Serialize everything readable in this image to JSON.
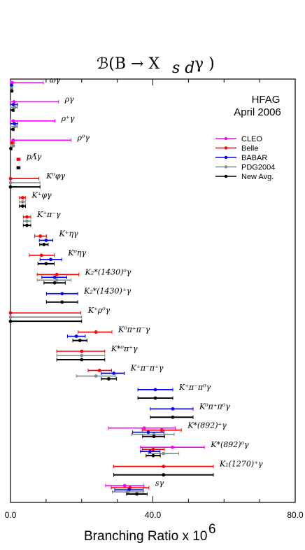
{
  "chart_data": {
    "type": "errorbar",
    "title": "ℬ(B → X_{s d} γ )",
    "title_main": "ℬ(B → X",
    "title_sub": "s d",
    "title_end": "γ )",
    "xlabel": "Branching Ratio x 10",
    "xlabel_exp": "6",
    "xlim": [
      0,
      80
    ],
    "xticks": [
      "0.0",
      "40.0",
      "80.0"
    ],
    "grid": false,
    "legend_position": "top-right",
    "annotation": [
      "HFAG",
      "April 2006"
    ],
    "series": [
      {
        "name": "CLEO",
        "color": "#ff00ff"
      },
      {
        "name": "Belle",
        "color": "#ff0000"
      },
      {
        "name": "BABAR",
        "color": "#0000ff"
      },
      {
        "name": "PDG2004",
        "color": "#7f8c8d"
      },
      {
        "name": "New Avg.",
        "color": "#000000"
      }
    ],
    "categories": [
      {
        "label": "ωγ",
        "points": [
          {
            "series": "CLEO",
            "value": 0.5,
            "lo": 0.0,
            "hi": 9.2
          },
          {
            "series": "BABAR",
            "value": 0.3,
            "lo": 0.0,
            "hi": 0.5
          },
          {
            "series": "PDG2004",
            "value": 0.3,
            "lo": 0.0,
            "hi": 0.5
          },
          {
            "series": "New Avg.",
            "value": 0.4,
            "lo": 0.0,
            "hi": 0.6
          }
        ]
      },
      {
        "label": "ργ",
        "points": [
          {
            "series": "CLEO",
            "value": 1.0,
            "lo": 0.0,
            "hi": 13.5
          },
          {
            "series": "BABAR",
            "value": 0.8,
            "lo": 0.0,
            "hi": 2.0
          },
          {
            "series": "PDG2004",
            "value": 1.2,
            "lo": 0.0,
            "hi": 2.0
          },
          {
            "series": "New Avg.",
            "value": 0.7,
            "lo": 0.0,
            "hi": 1.0
          }
        ]
      },
      {
        "label": "ρ⁺γ",
        "points": [
          {
            "series": "CLEO",
            "value": 0.8,
            "lo": 0.0,
            "hi": 12.5
          },
          {
            "series": "BABAR",
            "value": 1.1,
            "lo": 0.0,
            "hi": 2.0
          },
          {
            "series": "PDG2004",
            "value": 1.3,
            "lo": 0.0,
            "hi": 2.0
          },
          {
            "series": "New Avg.",
            "value": 0.7,
            "lo": 0.0,
            "hi": 1.0
          }
        ]
      },
      {
        "label": "ρ⁰γ",
        "points": [
          {
            "series": "CLEO",
            "value": 0.8,
            "lo": 0.0,
            "hi": 17.0
          },
          {
            "series": "Belle",
            "value": 0.4,
            "lo": 0.0,
            "hi": 1.0
          },
          {
            "series": "PDG2004",
            "value": 0.8,
            "lo": 0.0,
            "hi": 1.0
          },
          {
            "series": "New Avg.",
            "value": 0.1,
            "lo": 0.0,
            "hi": 0.4
          }
        ]
      },
      {
        "label": "pΛ̄γ",
        "points": [
          {
            "series": "Belle",
            "value": 2.2,
            "lo": 1.8,
            "hi": 2.7
          },
          {
            "series": "New Avg.",
            "value": 2.2,
            "lo": 1.8,
            "hi": 2.7
          }
        ]
      },
      {
        "label": "K⁰φγ",
        "points": [
          {
            "series": "Belle",
            "value": 0.0,
            "lo": 0.0,
            "hi": 8.0
          },
          {
            "series": "PDG2004",
            "value": 0.0,
            "lo": 0.0,
            "hi": 8.3
          },
          {
            "series": "New Avg.",
            "value": 0.0,
            "lo": 0.0,
            "hi": 8.3
          }
        ]
      },
      {
        "label": "K⁺φγ",
        "points": [
          {
            "series": "Belle",
            "value": 3.4,
            "lo": 2.5,
            "hi": 4.2
          },
          {
            "series": "PDG2004",
            "value": 3.4,
            "lo": 2.5,
            "hi": 4.2
          },
          {
            "series": "New Avg.",
            "value": 3.4,
            "lo": 2.5,
            "hi": 4.2
          }
        ]
      },
      {
        "label": "K⁺π⁻γ",
        "points": [
          {
            "series": "Belle",
            "value": 4.6,
            "lo": 3.6,
            "hi": 5.7
          },
          {
            "series": "PDG2004",
            "value": 4.6,
            "lo": 3.6,
            "hi": 5.7
          },
          {
            "series": "New Avg.",
            "value": 4.6,
            "lo": 3.6,
            "hi": 5.7
          }
        ]
      },
      {
        "label": "K⁺ηγ",
        "points": [
          {
            "series": "Belle",
            "value": 8.4,
            "lo": 6.8,
            "hi": 10.1
          },
          {
            "series": "BABAR",
            "value": 10.0,
            "lo": 8.1,
            "hi": 11.9
          },
          {
            "series": "New Avg.",
            "value": 9.4,
            "lo": 8.2,
            "hi": 10.6
          }
        ]
      },
      {
        "label": "K⁰ηγ",
        "points": [
          {
            "series": "Belle",
            "value": 8.7,
            "lo": 5.3,
            "hi": 12.3
          },
          {
            "series": "BABAR",
            "value": 11.3,
            "lo": 8.3,
            "hi": 14.4
          },
          {
            "series": "New Avg.",
            "value": 10.0,
            "lo": 7.7,
            "hi": 12.3
          }
        ]
      },
      {
        "label": "K₂*(1430)⁰γ",
        "points": [
          {
            "series": "Belle",
            "value": 13.0,
            "lo": 7.5,
            "hi": 19.2
          },
          {
            "series": "BABAR",
            "value": 12.4,
            "lo": 8.8,
            "hi": 15.8
          },
          {
            "series": "PDG2004",
            "value": 13.0,
            "lo": 7.5,
            "hi": 17.0
          },
          {
            "series": "New Avg.",
            "value": 12.4,
            "lo": 9.4,
            "hi": 15.4
          }
        ]
      },
      {
        "label": "K₂*(1430)⁺γ",
        "points": [
          {
            "series": "BABAR",
            "value": 14.5,
            "lo": 10.1,
            "hi": 18.9
          },
          {
            "series": "New Avg.",
            "value": 14.5,
            "lo": 10.1,
            "hi": 18.9
          }
        ]
      },
      {
        "label": "K⁺ρ⁰γ",
        "points": [
          {
            "series": "Belle",
            "value": 0.0,
            "lo": 0.0,
            "hi": 19.8
          },
          {
            "series": "PDG2004",
            "value": 0.0,
            "lo": 0.0,
            "hi": 20.0
          },
          {
            "series": "New Avg.",
            "value": 0.0,
            "lo": 0.0,
            "hi": 20.0
          }
        ]
      },
      {
        "label": "K⁰π⁺π⁻γ",
        "points": [
          {
            "series": "Belle",
            "value": 24.0,
            "lo": 19.0,
            "hi": 28.5
          },
          {
            "series": "BABAR",
            "value": 18.5,
            "lo": 16.0,
            "hi": 21.0
          },
          {
            "series": "New Avg.",
            "value": 19.5,
            "lo": 17.5,
            "hi": 21.5
          }
        ]
      },
      {
        "label": "K*⁰π⁺γ",
        "points": [
          {
            "series": "Belle",
            "value": 20.0,
            "lo": 13.0,
            "hi": 26.5
          },
          {
            "series": "PDG2004",
            "value": 20.0,
            "lo": 13.0,
            "hi": 26.5
          },
          {
            "series": "New Avg.",
            "value": 20.0,
            "lo": 13.0,
            "hi": 26.5
          }
        ]
      },
      {
        "label": "K⁺π⁻π⁺γ",
        "points": [
          {
            "series": "Belle",
            "value": 25.0,
            "lo": 21.8,
            "hi": 28.4
          },
          {
            "series": "BABAR",
            "value": 29.0,
            "lo": 25.5,
            "hi": 32.0
          },
          {
            "series": "PDG2004",
            "value": 24.0,
            "lo": 18.5,
            "hi": 29.5
          },
          {
            "series": "New Avg.",
            "value": 27.6,
            "lo": 25.5,
            "hi": 29.8
          }
        ]
      },
      {
        "label": "K⁺π⁻π⁰γ",
        "points": [
          {
            "series": "BABAR",
            "value": 40.7,
            "lo": 35.8,
            "hi": 45.6
          },
          {
            "series": "New Avg.",
            "value": 40.7,
            "lo": 35.8,
            "hi": 45.6
          }
        ]
      },
      {
        "label": "K⁰π⁺π⁰γ",
        "points": [
          {
            "series": "BABAR",
            "value": 45.6,
            "lo": 39.3,
            "hi": 51.3
          },
          {
            "series": "New Avg.",
            "value": 45.6,
            "lo": 39.3,
            "hi": 51.3
          }
        ]
      },
      {
        "label": "K*(892)⁺γ",
        "points": [
          {
            "series": "CLEO",
            "value": 37.6,
            "lo": 27.5,
            "hi": 46.3
          },
          {
            "series": "Belle",
            "value": 42.5,
            "lo": 37.0,
            "hi": 48.0
          },
          {
            "series": "BABAR",
            "value": 38.7,
            "lo": 34.3,
            "hi": 43.1
          },
          {
            "series": "PDG2004",
            "value": 40.3,
            "lo": 34.0,
            "hi": 46.0
          },
          {
            "series": "New Avg.",
            "value": 40.3,
            "lo": 37.1,
            "hi": 43.3
          }
        ]
      },
      {
        "label": "K*(892)⁰γ",
        "points": [
          {
            "series": "CLEO",
            "value": 45.5,
            "lo": 36.5,
            "hi": 54.5
          },
          {
            "series": "Belle",
            "value": 40.1,
            "lo": 37.0,
            "hi": 43.2
          },
          {
            "series": "BABAR",
            "value": 39.2,
            "lo": 36.5,
            "hi": 42.0
          },
          {
            "series": "PDG2004",
            "value": 43.0,
            "lo": 38.7,
            "hi": 47.3
          },
          {
            "series": "New Avg.",
            "value": 40.1,
            "lo": 38.1,
            "hi": 42.1
          }
        ]
      },
      {
        "label": "K₁(1270)⁺γ",
        "points": [
          {
            "series": "Belle",
            "value": 43.0,
            "lo": 29.0,
            "hi": 57.0
          },
          {
            "series": "New Avg.",
            "value": 43.0,
            "lo": 29.0,
            "hi": 57.0
          }
        ]
      },
      {
        "label": "sγ",
        "points": [
          {
            "series": "CLEO",
            "value": 32.1,
            "lo": 26.7,
            "hi": 37.5
          },
          {
            "series": "Belle",
            "value": 33.6,
            "lo": 28.3,
            "hi": 38.9
          },
          {
            "series": "BABAR",
            "value": 33.3,
            "lo": 29.3,
            "hi": 37.3
          },
          {
            "series": "PDG2004",
            "value": 33.0,
            "lo": 28.6,
            "hi": 37.4
          },
          {
            "series": "New Avg.",
            "value": 35.5,
            "lo": 32.6,
            "hi": 38.4
          }
        ]
      }
    ]
  }
}
